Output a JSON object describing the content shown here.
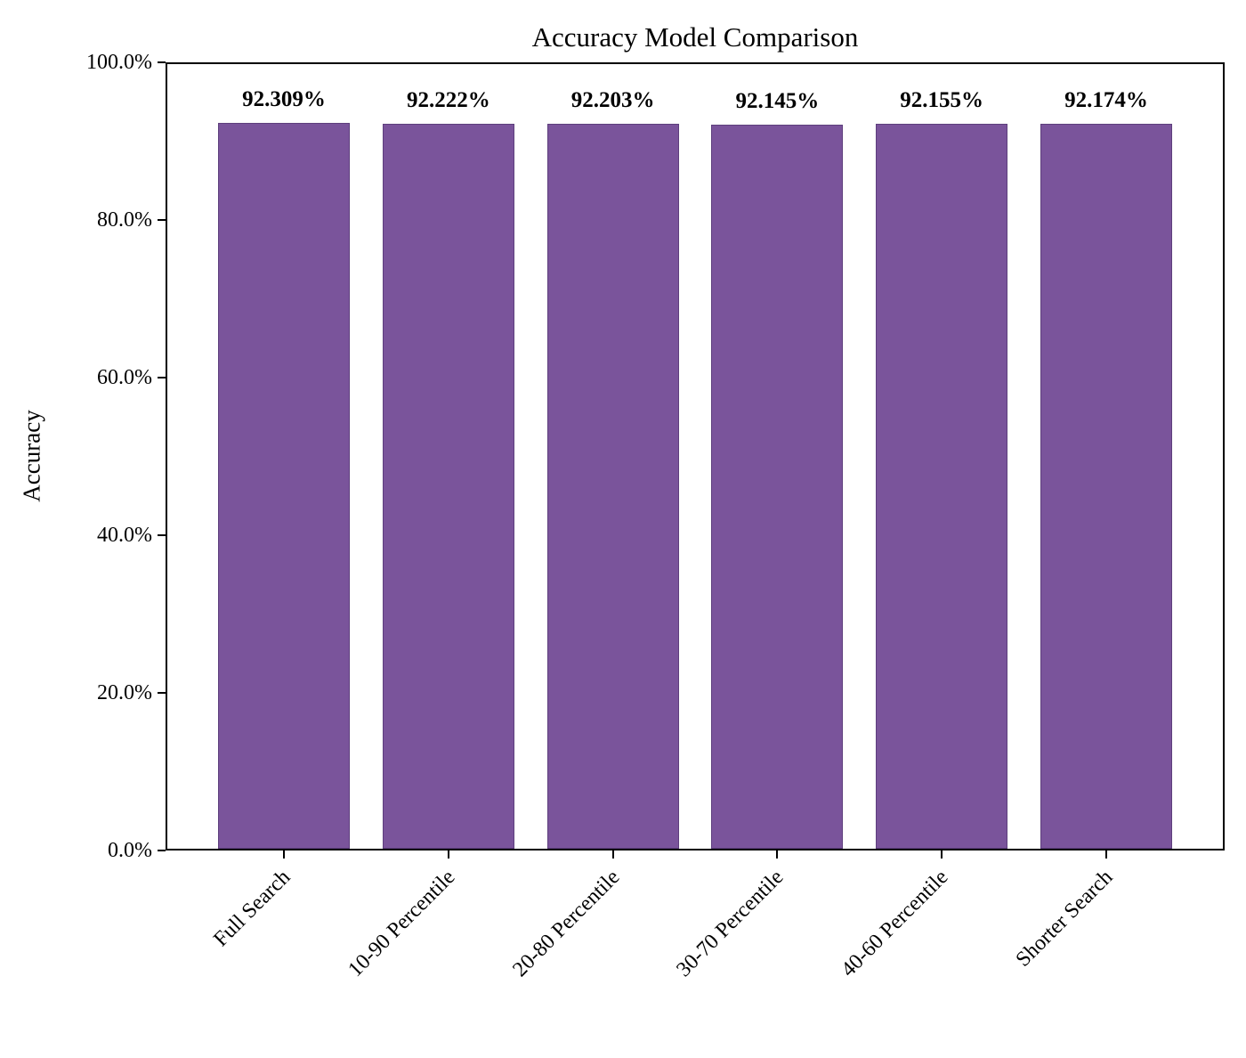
{
  "chart_data": {
    "type": "bar",
    "title": "Accuracy Model Comparison",
    "xlabel": "",
    "ylabel": "Accuracy",
    "categories": [
      "Full Search",
      "10-90 Percentile",
      "20-80 Percentile",
      "30-70 Percentile",
      "40-60 Percentile",
      "Shorter Search"
    ],
    "values": [
      92.309,
      92.222,
      92.203,
      92.145,
      92.155,
      92.174
    ],
    "value_labels": [
      "92.309%",
      "92.222%",
      "92.203%",
      "92.145%",
      "92.155%",
      "92.174%"
    ],
    "ylim": [
      0,
      100
    ],
    "yticks": [
      0,
      20,
      40,
      60,
      80,
      100
    ],
    "ytick_labels": [
      "0.0%",
      "20.0%",
      "40.0%",
      "60.0%",
      "80.0%",
      "100.0%"
    ],
    "bar_color": "#7a549b",
    "bar_edge_color": "#5e3f7d",
    "axis_color": "#000000",
    "grid": false,
    "legend": null
  }
}
